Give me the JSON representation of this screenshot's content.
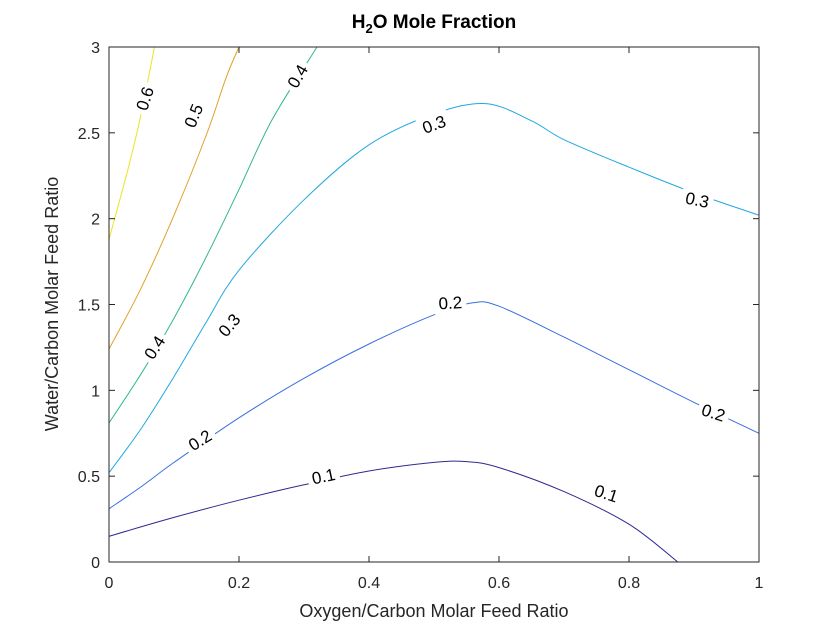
{
  "chart_data": {
    "type": "contour",
    "title": {
      "main": "H",
      "sub": "2",
      "rest": "O Mole Fraction"
    },
    "xlabel": "Oxygen/Carbon Molar Feed Ratio",
    "ylabel": "Water/Carbon Molar Feed Ratio",
    "xlim": [
      0,
      1
    ],
    "ylim": [
      0,
      3
    ],
    "xticks": [
      0,
      0.2,
      0.4,
      0.6,
      0.8,
      1
    ],
    "xtick_labels": [
      "0",
      "0.2",
      "0.4",
      "0.6",
      "0.8",
      "1"
    ],
    "yticks": [
      0,
      0.5,
      1,
      1.5,
      2,
      2.5,
      3
    ],
    "ytick_labels": [
      "0",
      "0.5",
      "1",
      "1.5",
      "2",
      "2.5",
      "3"
    ],
    "grid": false,
    "levels": [
      {
        "level": "0.1",
        "color": "#2e2a8f",
        "points": [
          [
            0,
            0.15
          ],
          [
            0.1,
            0.26
          ],
          [
            0.2,
            0.36
          ],
          [
            0.3,
            0.45
          ],
          [
            0.4,
            0.53
          ],
          [
            0.5,
            0.58
          ],
          [
            0.55,
            0.585
          ],
          [
            0.6,
            0.55
          ],
          [
            0.7,
            0.41
          ],
          [
            0.8,
            0.22
          ],
          [
            0.875,
            0.0
          ]
        ]
      },
      {
        "level": "0.2",
        "color": "#3a6fe0",
        "points": [
          [
            0,
            0.31
          ],
          [
            0.05,
            0.44
          ],
          [
            0.1,
            0.58
          ],
          [
            0.2,
            0.84
          ],
          [
            0.3,
            1.07
          ],
          [
            0.4,
            1.27
          ],
          [
            0.5,
            1.44
          ],
          [
            0.56,
            1.51
          ],
          [
            0.6,
            1.49
          ],
          [
            0.7,
            1.31
          ],
          [
            0.8,
            1.12
          ],
          [
            0.9,
            0.93
          ],
          [
            1,
            0.75
          ]
        ]
      },
      {
        "level": "0.3",
        "color": "#21a9e0",
        "points": [
          [
            0,
            0.52
          ],
          [
            0.05,
            0.78
          ],
          [
            0.1,
            1.08
          ],
          [
            0.15,
            1.4
          ],
          [
            0.2,
            1.7
          ],
          [
            0.3,
            2.11
          ],
          [
            0.4,
            2.43
          ],
          [
            0.5,
            2.61
          ],
          [
            0.58,
            2.67
          ],
          [
            0.65,
            2.57
          ],
          [
            0.7,
            2.46
          ],
          [
            0.8,
            2.3
          ],
          [
            0.9,
            2.15
          ],
          [
            1,
            2.02
          ]
        ]
      },
      {
        "level": "0.4",
        "color": "#2eb88a",
        "points": [
          [
            0,
            0.81
          ],
          [
            0.05,
            1.1
          ],
          [
            0.1,
            1.42
          ],
          [
            0.15,
            1.78
          ],
          [
            0.2,
            2.17
          ],
          [
            0.25,
            2.57
          ],
          [
            0.32,
            3.0
          ]
        ]
      },
      {
        "level": "0.5",
        "color": "#e0a12a",
        "points": [
          [
            0,
            1.24
          ],
          [
            0.05,
            1.6
          ],
          [
            0.1,
            2.02
          ],
          [
            0.15,
            2.49
          ],
          [
            0.18,
            2.82
          ],
          [
            0.2,
            3.0
          ]
        ]
      },
      {
        "level": "0.6",
        "color": "#ece41e",
        "points": [
          [
            0,
            1.88
          ],
          [
            0.03,
            2.3
          ],
          [
            0.05,
            2.62
          ],
          [
            0.07,
            3.0
          ]
        ]
      }
    ],
    "labels": [
      {
        "text": "0.1",
        "x": 0.33,
        "y": 0.5,
        "angle": -12
      },
      {
        "text": "0.1",
        "x": 0.765,
        "y": 0.4,
        "angle": 18
      },
      {
        "text": "0.2",
        "x": 0.14,
        "y": 0.71,
        "angle": -32
      },
      {
        "text": "0.2",
        "x": 0.525,
        "y": 1.51,
        "angle": -3
      },
      {
        "text": "0.2",
        "x": 0.93,
        "y": 0.87,
        "angle": 18
      },
      {
        "text": "0.3",
        "x": 0.185,
        "y": 1.38,
        "angle": -50
      },
      {
        "text": "0.3",
        "x": 0.5,
        "y": 2.55,
        "angle": -20
      },
      {
        "text": "0.3",
        "x": 0.905,
        "y": 2.11,
        "angle": 12
      },
      {
        "text": "0.4",
        "x": 0.07,
        "y": 1.25,
        "angle": -57
      },
      {
        "text": "0.4",
        "x": 0.29,
        "y": 2.83,
        "angle": -60
      },
      {
        "text": "0.5",
        "x": 0.13,
        "y": 2.6,
        "angle": -68
      },
      {
        "text": "0.6",
        "x": 0.055,
        "y": 2.7,
        "angle": -72
      }
    ]
  }
}
